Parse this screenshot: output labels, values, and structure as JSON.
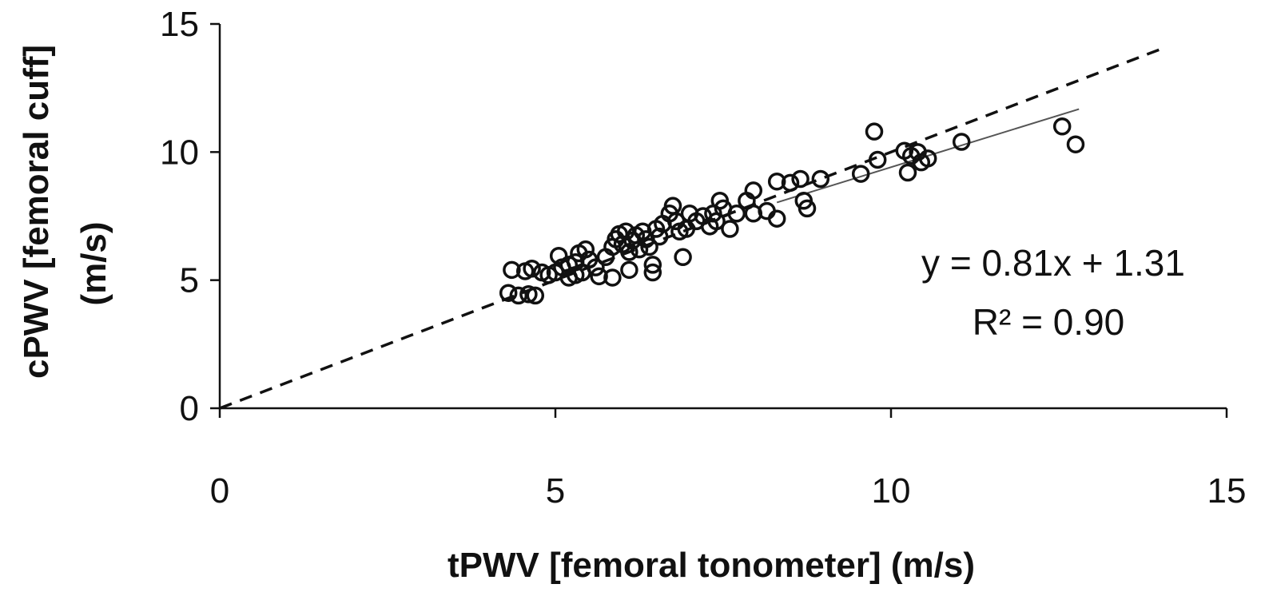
{
  "chart_data": {
    "type": "scatter",
    "title": "",
    "xlabel": "tPWV  [femoral tonometer] (m/s)",
    "ylabel_line1": "cPWV  [femoral cuff]",
    "ylabel_line2": "(m/s)",
    "xlim": [
      0,
      15
    ],
    "ylim": [
      0,
      15
    ],
    "xticks": [
      0,
      5,
      10,
      15
    ],
    "yticks": [
      0,
      5,
      10,
      15
    ],
    "xtick_labels": [
      "0",
      "5",
      "10",
      "15"
    ],
    "ytick_labels": [
      "0",
      "5",
      "10",
      "15"
    ],
    "grid": false,
    "legend": "none",
    "marker": "open-circle",
    "color": "#111111",
    "equation": "y = 0.81x + 1.31",
    "r2_label": "R² = 0.90",
    "regression": {
      "slope": 0.81,
      "intercept": 1.31,
      "x_range": [
        8.3,
        12.8
      ],
      "style": "solid"
    },
    "identity_line": {
      "x_range": [
        0,
        14
      ],
      "style": "dashed"
    },
    "points": [
      {
        "x": 4.3,
        "y": 4.5
      },
      {
        "x": 4.45,
        "y": 4.4
      },
      {
        "x": 4.6,
        "y": 4.45
      },
      {
        "x": 4.7,
        "y": 4.4
      },
      {
        "x": 4.35,
        "y": 5.4
      },
      {
        "x": 4.55,
        "y": 5.35
      },
      {
        "x": 4.65,
        "y": 5.45
      },
      {
        "x": 4.8,
        "y": 5.3
      },
      {
        "x": 4.9,
        "y": 5.2
      },
      {
        "x": 5.0,
        "y": 5.3
      },
      {
        "x": 5.05,
        "y": 5.95
      },
      {
        "x": 5.1,
        "y": 5.5
      },
      {
        "x": 5.2,
        "y": 5.6
      },
      {
        "x": 5.2,
        "y": 5.1
      },
      {
        "x": 5.3,
        "y": 5.7
      },
      {
        "x": 5.35,
        "y": 6.05
      },
      {
        "x": 5.4,
        "y": 5.3
      },
      {
        "x": 5.45,
        "y": 6.2
      },
      {
        "x": 5.5,
        "y": 5.8
      },
      {
        "x": 5.3,
        "y": 5.2
      },
      {
        "x": 5.6,
        "y": 5.5
      },
      {
        "x": 5.65,
        "y": 5.15
      },
      {
        "x": 5.75,
        "y": 5.9
      },
      {
        "x": 5.85,
        "y": 5.1
      },
      {
        "x": 5.85,
        "y": 6.3
      },
      {
        "x": 5.9,
        "y": 6.6
      },
      {
        "x": 5.95,
        "y": 6.8
      },
      {
        "x": 6.0,
        "y": 6.4
      },
      {
        "x": 6.05,
        "y": 6.9
      },
      {
        "x": 6.1,
        "y": 6.1
      },
      {
        "x": 6.15,
        "y": 6.55
      },
      {
        "x": 6.2,
        "y": 6.75
      },
      {
        "x": 6.25,
        "y": 6.2
      },
      {
        "x": 6.3,
        "y": 6.9
      },
      {
        "x": 6.1,
        "y": 5.4
      },
      {
        "x": 6.35,
        "y": 6.6
      },
      {
        "x": 6.4,
        "y": 6.3
      },
      {
        "x": 6.45,
        "y": 5.3
      },
      {
        "x": 6.45,
        "y": 5.6
      },
      {
        "x": 6.5,
        "y": 7.0
      },
      {
        "x": 6.55,
        "y": 6.7
      },
      {
        "x": 6.6,
        "y": 7.2
      },
      {
        "x": 6.7,
        "y": 7.6
      },
      {
        "x": 6.75,
        "y": 7.9
      },
      {
        "x": 6.8,
        "y": 7.3
      },
      {
        "x": 6.85,
        "y": 6.9
      },
      {
        "x": 6.9,
        "y": 5.9
      },
      {
        "x": 6.95,
        "y": 7.0
      },
      {
        "x": 7.0,
        "y": 7.6
      },
      {
        "x": 7.1,
        "y": 7.3
      },
      {
        "x": 7.2,
        "y": 7.5
      },
      {
        "x": 7.3,
        "y": 7.1
      },
      {
        "x": 7.35,
        "y": 7.6
      },
      {
        "x": 7.4,
        "y": 7.3
      },
      {
        "x": 7.45,
        "y": 8.1
      },
      {
        "x": 7.5,
        "y": 7.8
      },
      {
        "x": 7.6,
        "y": 7.0
      },
      {
        "x": 7.7,
        "y": 7.6
      },
      {
        "x": 7.85,
        "y": 8.1
      },
      {
        "x": 7.95,
        "y": 8.5
      },
      {
        "x": 7.95,
        "y": 7.6
      },
      {
        "x": 8.15,
        "y": 7.7
      },
      {
        "x": 8.3,
        "y": 7.4
      },
      {
        "x": 8.3,
        "y": 8.85
      },
      {
        "x": 8.5,
        "y": 8.8
      },
      {
        "x": 8.65,
        "y": 8.95
      },
      {
        "x": 8.7,
        "y": 8.1
      },
      {
        "x": 8.75,
        "y": 7.8
      },
      {
        "x": 8.95,
        "y": 8.95
      },
      {
        "x": 9.55,
        "y": 9.15
      },
      {
        "x": 9.75,
        "y": 10.8
      },
      {
        "x": 9.8,
        "y": 9.7
      },
      {
        "x": 10.2,
        "y": 10.05
      },
      {
        "x": 10.25,
        "y": 9.2
      },
      {
        "x": 10.3,
        "y": 9.85
      },
      {
        "x": 10.4,
        "y": 10.0
      },
      {
        "x": 10.45,
        "y": 9.6
      },
      {
        "x": 10.55,
        "y": 9.75
      },
      {
        "x": 11.05,
        "y": 10.4
      },
      {
        "x": 12.55,
        "y": 11.0
      },
      {
        "x": 12.75,
        "y": 10.3
      }
    ]
  }
}
